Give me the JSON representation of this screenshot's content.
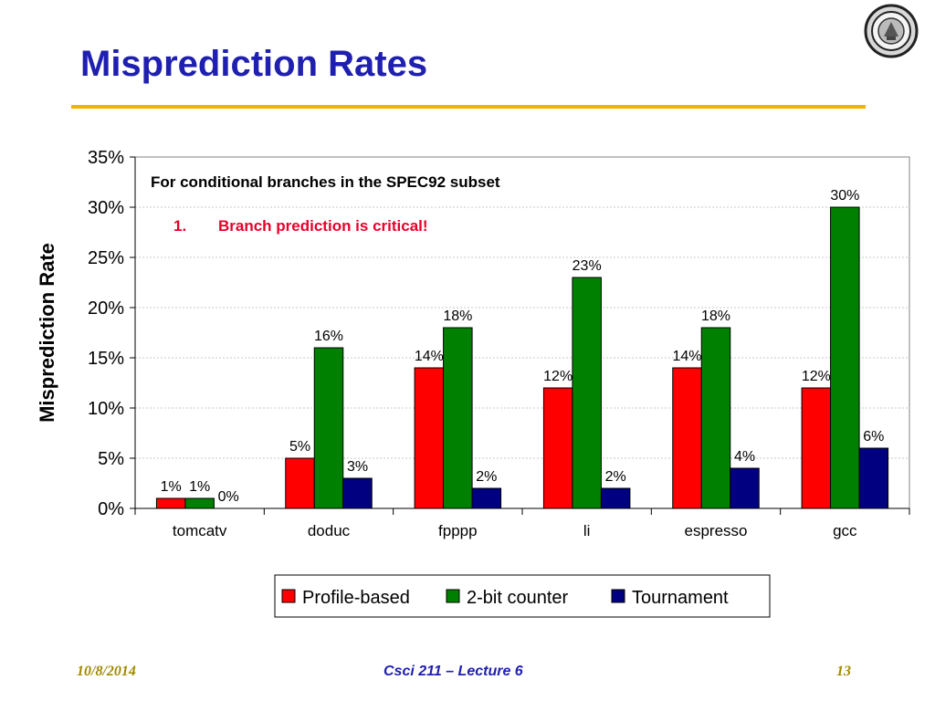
{
  "slide": {
    "title": "Misprediction Rates"
  },
  "footer": {
    "date": "10/8/2014",
    "course": "Csci 211 – Lecture 6",
    "page": "13"
  },
  "logo": {
    "icon": "university-seal-icon"
  },
  "colors": {
    "title": "#1f1fb0",
    "rule": "#f0b400",
    "footer_accent": "#a08a00",
    "annotation_red": "#e8002a"
  },
  "chart_data": {
    "type": "bar",
    "title": "",
    "xlabel": "",
    "ylabel": "Misprediction Rate",
    "ylim": [
      0,
      0.35
    ],
    "yticks": [
      {
        "value": 0,
        "label": "0%"
      },
      {
        "value": 0.05,
        "label": "5%"
      },
      {
        "value": 0.1,
        "label": "10%"
      },
      {
        "value": 0.15,
        "label": "15%"
      },
      {
        "value": 0.2,
        "label": "20%"
      },
      {
        "value": 0.25,
        "label": "25%"
      },
      {
        "value": 0.3,
        "label": "30%"
      },
      {
        "value": 0.35,
        "label": "35%"
      }
    ],
    "grid": true,
    "legend_position": "bottom",
    "categories": [
      "tomcatv",
      "doduc",
      "fpppp",
      "li",
      "espresso",
      "gcc"
    ],
    "series": [
      {
        "name": "Profile-based",
        "color": "#ff0000",
        "values": [
          0.01,
          0.05,
          0.14,
          0.12,
          0.14,
          0.12
        ],
        "labels": [
          "1%",
          "5%",
          "14%",
          "12%",
          "14%",
          "12%"
        ]
      },
      {
        "name": "2-bit counter",
        "color": "#008000",
        "values": [
          0.01,
          0.16,
          0.18,
          0.23,
          0.18,
          0.3
        ],
        "labels": [
          "1%",
          "16%",
          "18%",
          "23%",
          "18%",
          "30%"
        ]
      },
      {
        "name": "Tournament",
        "color": "#000080",
        "values": [
          0.0,
          0.03,
          0.02,
          0.02,
          0.04,
          0.06
        ],
        "labels": [
          "0%",
          "3%",
          "2%",
          "2%",
          "4%",
          "6%"
        ]
      }
    ],
    "annotations": [
      {
        "id": "note-subset",
        "text": "For conditional branches in the SPEC92 subset"
      },
      {
        "id": "note-critical",
        "number": "1.",
        "text": "Branch prediction is critical!"
      }
    ]
  }
}
